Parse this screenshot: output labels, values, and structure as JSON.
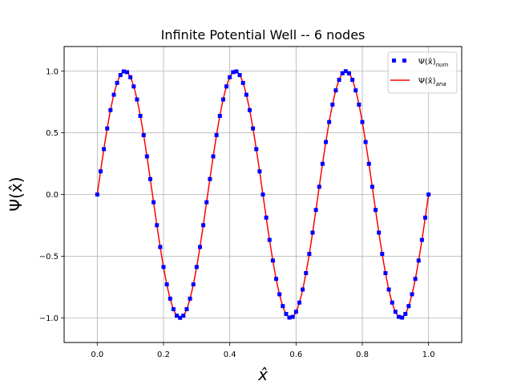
{
  "chart_data": {
    "type": "line",
    "title": "Infinite Potential Well -- 6 nodes",
    "xlabel": "x̂",
    "ylabel": "Ψ(x̂)",
    "xlim": [
      -0.1,
      1.1
    ],
    "ylim": [
      -1.2,
      1.2
    ],
    "xticks": [
      0.0,
      0.2,
      0.4,
      0.6,
      0.8,
      1.0
    ],
    "xtick_labels": [
      "0.0",
      "0.2",
      "0.4",
      "0.6",
      "0.8",
      "1.0"
    ],
    "yticks": [
      -1.0,
      -0.5,
      0.0,
      0.5,
      1.0
    ],
    "ytick_labels": [
      "−1.0",
      "−0.5",
      "0.0",
      "0.5",
      "1.0"
    ],
    "grid": true,
    "legend_position": "top-right",
    "series": [
      {
        "name": "Ψ(x̂)_num",
        "legend_main": "Ψ(x̂)",
        "legend_sub": "num",
        "style": "dotted-squares",
        "color": "#0000ff",
        "function": "sin(6πx)",
        "x_start": 0.0,
        "x_end": 1.0,
        "x_step": 0.01
      },
      {
        "name": "Ψ(x̂)_ana",
        "legend_main": "Ψ(x̂)",
        "legend_sub": "ana",
        "style": "solid",
        "color": "#ff0000",
        "function": "sin(6πx)",
        "x_start": 0.0,
        "x_end": 1.0,
        "x_step": 0.002
      }
    ]
  }
}
